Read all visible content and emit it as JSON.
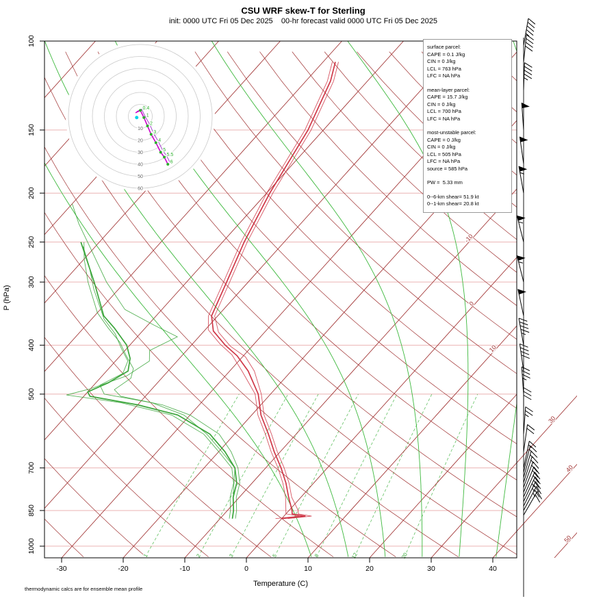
{
  "header": {
    "title": "CSU WRF skew-T for Sterling",
    "subtitle": "init: 0000 UTC Fri 05 Dec 2025    00-hr forecast valid 0000 UTC Fri 05 Dec 2025"
  },
  "footer": {
    "note": "thermodynamic calcs are for ensemble mean profile"
  },
  "axes": {
    "x_label": "Temperature (C)",
    "y_label": "P (hPa)",
    "pressure_ticks": [
      100,
      150,
      200,
      250,
      300,
      400,
      500,
      700,
      850,
      1000
    ],
    "temp_ticks": [
      -30,
      -20,
      -10,
      0,
      10,
      20,
      30,
      40
    ]
  },
  "info_box": {
    "sections": [
      {
        "title": "surface parcel:",
        "lines": [
          "CAPE = 0.1 J/kg",
          "CIN = 0 J/kg",
          "LCL = 763 hPa",
          "LFC = NA hPa"
        ]
      },
      {
        "title": "mean-layer parcel:",
        "lines": [
          "CAPE = 15.7 J/kg",
          "CIN = 0 J/kg",
          "LCL = 700 hPa",
          "LFC = NA hPa"
        ]
      },
      {
        "title": "most-unstable parcel:",
        "lines": [
          "CAPE = 0 J/kg",
          "CIN = 0 J/kg",
          "LCL = 505 hPa",
          "LFC = NA hPa",
          "source = 585 hPa"
        ]
      }
    ],
    "pw": "PW =  5.33 mm",
    "shear": [
      "0--6-km shear= 51.9 kt",
      "0--1-km shear= 20.8 kt"
    ]
  },
  "chart_data": {
    "type": "skewt",
    "pressure_log_scale": true,
    "pressure_ticks": [
      100,
      150,
      200,
      250,
      300,
      400,
      500,
      700,
      850,
      1000
    ],
    "temp_ticks": [
      -30,
      -20,
      -10,
      0,
      10,
      20,
      30,
      40
    ],
    "isotherms": {
      "min": -120,
      "max": 20,
      "step": 10,
      "extended": [
        30,
        40,
        50
      ]
    },
    "isotherm_labels": [
      {
        "t": -10,
        "p": 245
      },
      {
        "t": 0,
        "p": 330
      },
      {
        "t": 10,
        "p": 405
      },
      {
        "t": 30,
        "p": 560
      },
      {
        "t": 40,
        "p": 700
      },
      {
        "t": 50,
        "p": 965
      }
    ],
    "dry_adiabats": {
      "min": -40,
      "max": 200,
      "step": 10
    },
    "moist_adiabats": [
      10,
      16,
      22,
      28,
      34,
      40,
      46
    ],
    "mixing_ratios": [
      1,
      2,
      3,
      5,
      8,
      12,
      20
    ],
    "temperature_profile": [
      [
        882,
        0
      ],
      [
        872,
        3.5
      ],
      [
        863,
        1
      ],
      [
        850,
        0.5
      ],
      [
        800,
        -2
      ],
      [
        750,
        -4.5
      ],
      [
        700,
        -7.5
      ],
      [
        650,
        -11
      ],
      [
        600,
        -14.5
      ],
      [
        550,
        -18.5
      ],
      [
        500,
        -22
      ],
      [
        450,
        -27
      ],
      [
        420,
        -31
      ],
      [
        400,
        -34.5
      ],
      [
        375,
        -38.5
      ],
      [
        350,
        -41
      ],
      [
        300,
        -43.5
      ],
      [
        250,
        -46.5
      ],
      [
        200,
        -49.5
      ],
      [
        150,
        -52.5
      ],
      [
        120,
        -56
      ],
      [
        110,
        -58
      ]
    ],
    "temperature_members": [
      [
        [
          882,
          1
        ],
        [
          872,
          4.5
        ],
        [
          863,
          2
        ],
        [
          850,
          1.5
        ],
        [
          800,
          -1.5
        ],
        [
          750,
          -4
        ],
        [
          700,
          -7
        ],
        [
          650,
          -10.5
        ],
        [
          600,
          -14
        ],
        [
          550,
          -18
        ],
        [
          500,
          -21.5
        ],
        [
          450,
          -26
        ],
        [
          422,
          -29.5
        ],
        [
          402,
          -33.5
        ],
        [
          377,
          -37.5
        ],
        [
          350,
          -40.5
        ],
        [
          300,
          -43
        ],
        [
          250,
          -46
        ],
        [
          200,
          -49
        ],
        [
          150,
          -52
        ],
        [
          120,
          -55.5
        ],
        [
          110,
          -57.5
        ]
      ],
      [
        [
          882,
          -1
        ],
        [
          872,
          2.5
        ],
        [
          863,
          0
        ],
        [
          850,
          -0.5
        ],
        [
          800,
          -2.5
        ],
        [
          750,
          -5
        ],
        [
          700,
          -8
        ],
        [
          650,
          -11.5
        ],
        [
          600,
          -15
        ],
        [
          550,
          -19
        ],
        [
          500,
          -22.5
        ],
        [
          450,
          -28
        ],
        [
          418,
          -32
        ],
        [
          398,
          -35.5
        ],
        [
          373,
          -39.5
        ],
        [
          350,
          -41.5
        ],
        [
          300,
          -44
        ],
        [
          250,
          -47
        ],
        [
          200,
          -50
        ],
        [
          150,
          -53
        ],
        [
          120,
          -56.5
        ],
        [
          110,
          -58.5
        ]
      ]
    ],
    "dewpoint_profile": [
      [
        882,
        -8
      ],
      [
        850,
        -9
      ],
      [
        800,
        -11
      ],
      [
        750,
        -12.5
      ],
      [
        700,
        -15
      ],
      [
        650,
        -19
      ],
      [
        600,
        -24
      ],
      [
        550,
        -32
      ],
      [
        525,
        -40
      ],
      [
        505,
        -49
      ],
      [
        495,
        -50
      ],
      [
        475,
        -48
      ],
      [
        450,
        -46.5
      ],
      [
        425,
        -48
      ],
      [
        400,
        -50.5
      ],
      [
        370,
        -55
      ],
      [
        350,
        -58.5
      ],
      [
        300,
        -65
      ],
      [
        250,
        -73
      ]
    ],
    "dewpoint_members": [
      [
        [
          882,
          -8.5
        ],
        [
          850,
          -9.5
        ],
        [
          800,
          -11.5
        ],
        [
          750,
          -13
        ],
        [
          700,
          -15.5
        ],
        [
          650,
          -20
        ],
        [
          600,
          -25
        ],
        [
          550,
          -33
        ],
        [
          520,
          -43
        ],
        [
          502,
          -53
        ],
        [
          488,
          -50
        ],
        [
          460,
          -46
        ],
        [
          430,
          -44.5
        ],
        [
          410,
          -46
        ],
        [
          385,
          -43.5
        ],
        [
          365,
          -49
        ],
        [
          340,
          -56
        ],
        [
          300,
          -63
        ],
        [
          260,
          -70
        ],
        [
          230,
          -76
        ],
        [
          210,
          -80
        ]
      ],
      [
        [
          882,
          -7.5
        ],
        [
          850,
          -8.5
        ],
        [
          800,
          -10.5
        ],
        [
          750,
          -12
        ],
        [
          700,
          -14.5
        ],
        [
          650,
          -18
        ],
        [
          600,
          -22.5
        ],
        [
          550,
          -30
        ],
        [
          525,
          -36
        ],
        [
          505,
          -44
        ],
        [
          490,
          -46
        ],
        [
          465,
          -45
        ],
        [
          445,
          -46
        ],
        [
          420,
          -49
        ],
        [
          395,
          -52
        ],
        [
          370,
          -56
        ],
        [
          345,
          -60
        ],
        [
          300,
          -66
        ],
        [
          270,
          -70
        ],
        [
          250,
          -72.5
        ]
      ],
      [
        [
          882,
          -8
        ],
        [
          850,
          -9
        ],
        [
          800,
          -11
        ],
        [
          700,
          -15
        ],
        [
          650,
          -19.5
        ],
        [
          600,
          -24.5
        ],
        [
          550,
          -31
        ],
        [
          520,
          -38
        ],
        [
          500,
          -47
        ],
        [
          480,
          -49
        ],
        [
          455,
          -47
        ],
        [
          430,
          -48
        ],
        [
          405,
          -51
        ],
        [
          380,
          -54
        ],
        [
          355,
          -58
        ],
        [
          310,
          -64
        ],
        [
          280,
          -68
        ],
        [
          255,
          -72
        ]
      ]
    ],
    "hodograph": {
      "unit": "kt",
      "rings": [
        10,
        20,
        30,
        40,
        50,
        60
      ],
      "points": [
        {
          "km": "0",
          "u": -4,
          "v": 3
        },
        {
          "km": "0.4",
          "u": 0,
          "v": 5
        },
        {
          "km": "1",
          "u": 3,
          "v": -1
        },
        {
          "km": "2",
          "u": 6,
          "v": -8
        },
        {
          "km": "3",
          "u": 9,
          "v": -15
        },
        {
          "km": "4",
          "u": 13,
          "v": -22
        },
        {
          "km": "5",
          "u": 17,
          "v": -30
        },
        {
          "km": "5.5",
          "u": 20,
          "v": -34
        },
        {
          "km": "6",
          "u": 23,
          "v": -40
        }
      ],
      "member_points": [
        [
          -3,
          4
        ],
        [
          1,
          6
        ],
        [
          4,
          0
        ],
        [
          8,
          -7
        ],
        [
          11,
          -14
        ],
        [
          15,
          -21
        ],
        [
          19,
          -29
        ],
        [
          22,
          -33
        ],
        [
          25,
          -39
        ]
      ],
      "storm_motion": {
        "u": -3,
        "v": -1
      }
    },
    "wind_barbs": [
      {
        "p": 868,
        "dir": 30,
        "spd": 20
      },
      {
        "p": 850,
        "dir": 28,
        "spd": 25
      },
      {
        "p": 833,
        "dir": 26,
        "spd": 25
      },
      {
        "p": 816,
        "dir": 25,
        "spd": 25
      },
      {
        "p": 799,
        "dir": 24,
        "spd": 20
      },
      {
        "p": 782,
        "dir": 22,
        "spd": 20
      },
      {
        "p": 765,
        "dir": 20,
        "spd": 20
      },
      {
        "p": 748,
        "dir": 18,
        "spd": 15
      },
      {
        "p": 731,
        "dir": 16,
        "spd": 15
      },
      {
        "p": 714,
        "dir": 14,
        "spd": 15
      },
      {
        "p": 700,
        "dir": 12,
        "spd": 15
      },
      {
        "p": 650,
        "dir": 8,
        "spd": 20
      },
      {
        "p": 600,
        "dir": 4,
        "spd": 25
      },
      {
        "p": 550,
        "dir": 0,
        "spd": 30
      },
      {
        "p": 500,
        "dir": 356,
        "spd": 35
      },
      {
        "p": 450,
        "dir": 352,
        "spd": 40
      },
      {
        "p": 400,
        "dir": 350,
        "spd": 45
      },
      {
        "p": 350,
        "dir": 348,
        "spd": 50
      },
      {
        "p": 300,
        "dir": 346,
        "spd": 55
      },
      {
        "p": 250,
        "dir": 346,
        "spd": 55
      },
      {
        "p": 200,
        "dir": 350,
        "spd": 55
      },
      {
        "p": 175,
        "dir": 352,
        "spd": 50
      },
      {
        "p": 150,
        "dir": 356,
        "spd": 50
      },
      {
        "p": 125,
        "dir": 2,
        "spd": 45
      },
      {
        "p": 110,
        "dir": 6,
        "spd": 40
      },
      {
        "p": 102,
        "dir": 10,
        "spd": 45
      }
    ],
    "colors": {
      "isobar": "#e8a8a8",
      "isotherm": "#a03232",
      "dry_adiabat": "#a03232",
      "moist_adiabat": "#3cb83c",
      "mixing_ratio": "#62c062",
      "mixing_label": "#2ba52b",
      "temperature": "#cf3747",
      "dewpoint": "#3aa53a",
      "hodo_ring": "#c9c9c9",
      "hodo_ring_label": "#666666",
      "hodo_trace": "#cc00cc",
      "hodo_member": "#9b30c9",
      "hodo_dot": "#2db02d",
      "storm_motion_dot": "#00d5e8",
      "barb": "#000000"
    }
  }
}
